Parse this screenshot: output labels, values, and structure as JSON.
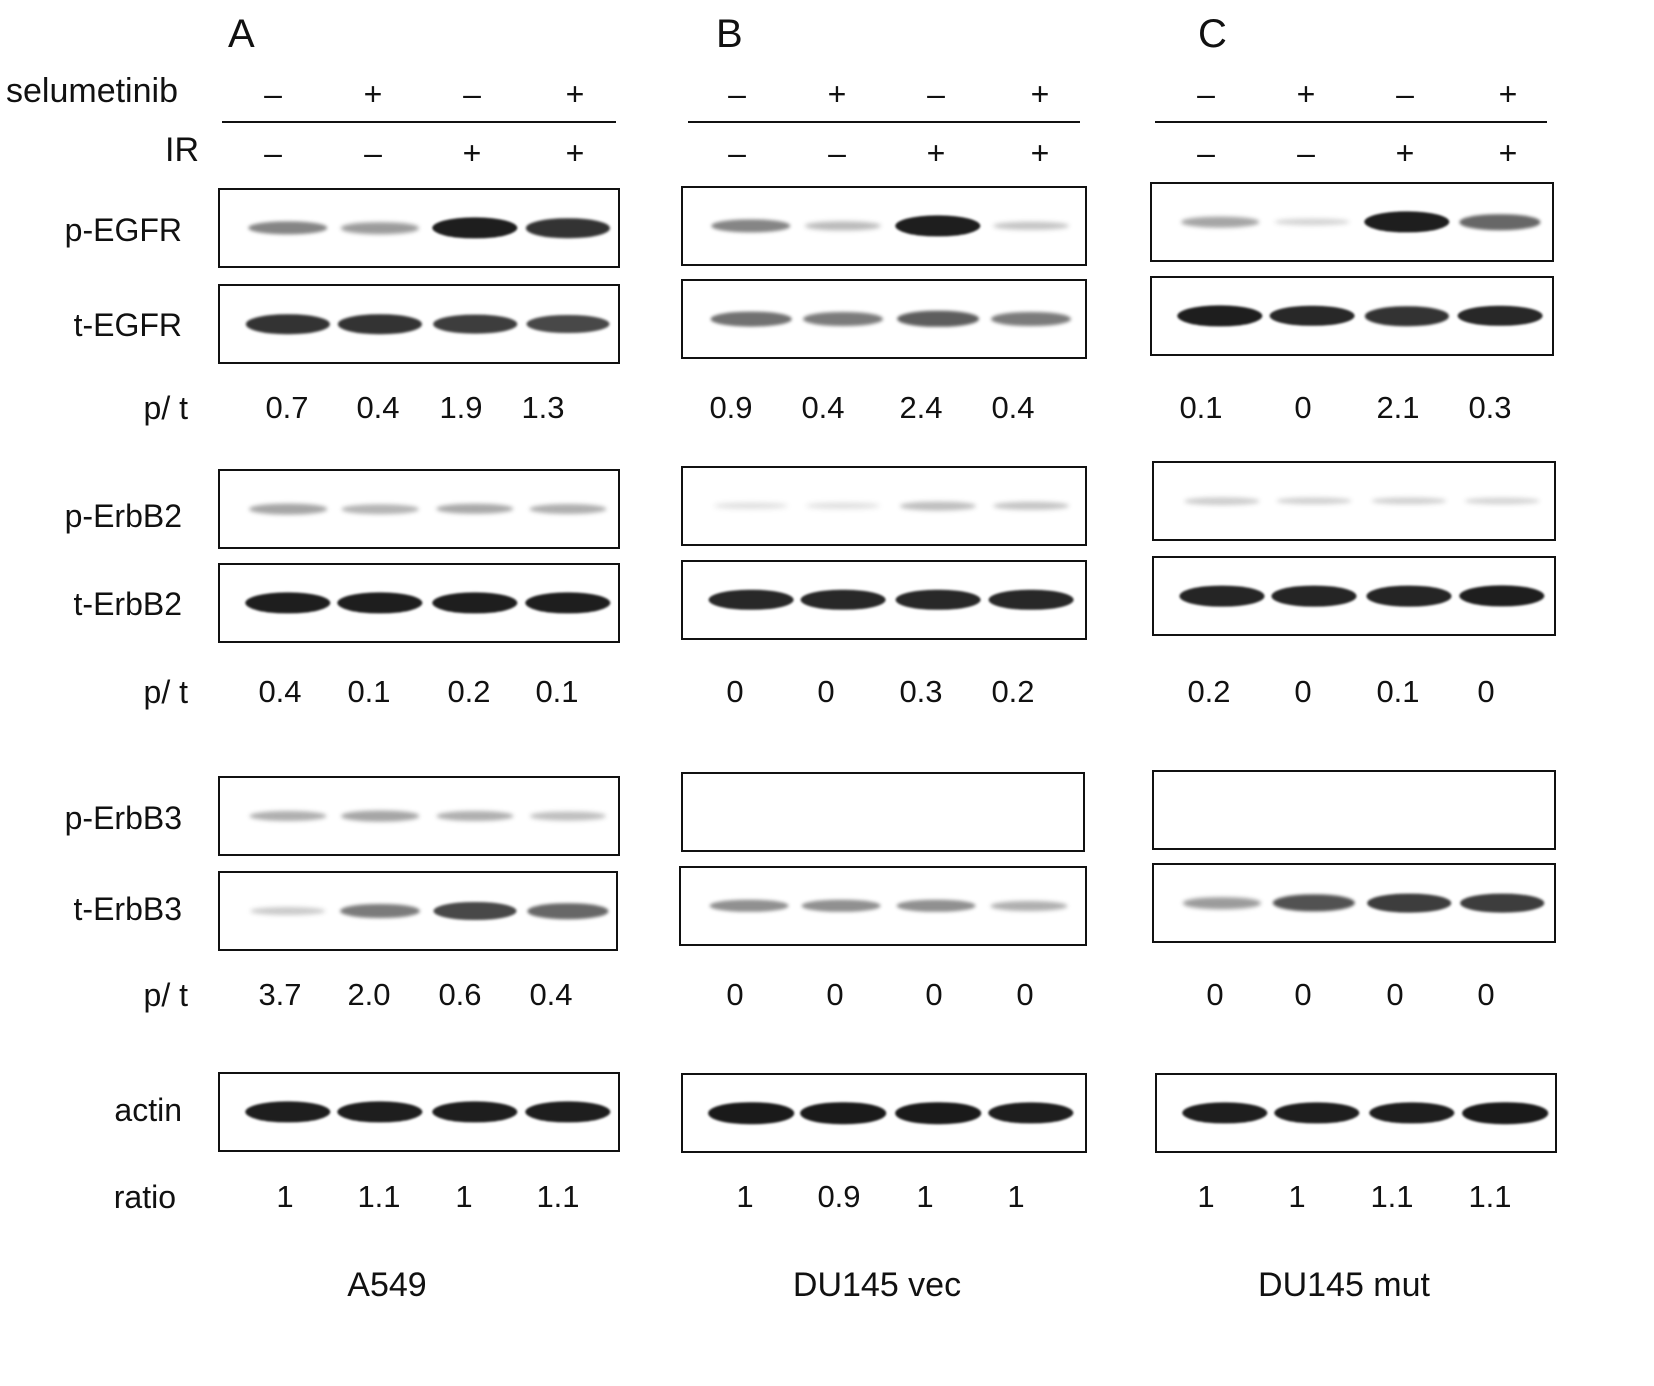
{
  "panels": [
    {
      "letter": "A",
      "cell_line": "A549",
      "blots": {
        "p_EGFR": {
          "bands": [
            0.45,
            0.35,
            0.95,
            0.85
          ]
        },
        "t_EGFR": {
          "bands": [
            0.85,
            0.85,
            0.8,
            0.75
          ]
        },
        "p_ErbB2": {
          "bands": [
            0.3,
            0.22,
            0.28,
            0.25
          ]
        },
        "t_ErbB2": {
          "bands": [
            0.95,
            0.95,
            0.95,
            0.95
          ]
        },
        "p_ErbB3": {
          "bands": [
            0.25,
            0.3,
            0.25,
            0.18
          ]
        },
        "t_ErbB3": {
          "bands": [
            0.12,
            0.5,
            0.75,
            0.6
          ]
        },
        "actin": {
          "bands": [
            0.95,
            0.95,
            0.95,
            0.95
          ]
        }
      },
      "ratios": {
        "egfr": [
          "0.7",
          "0.4",
          "1.9",
          "1.3"
        ],
        "erbb2": [
          "0.4",
          "0.1",
          "0.2",
          "0.1"
        ],
        "erbb3": [
          "3.7",
          "2.0",
          "0.6",
          "0.4"
        ],
        "actin": [
          "1",
          "1.1",
          "1",
          "1.1"
        ]
      }
    },
    {
      "letter": "B",
      "cell_line": "DU145 vec",
      "blots": {
        "p_EGFR": {
          "bands": [
            0.45,
            0.2,
            0.95,
            0.15
          ]
        },
        "t_EGFR": {
          "bands": [
            0.55,
            0.5,
            0.65,
            0.5
          ]
        },
        "p_ErbB2": {
          "bands": [
            0.03,
            0.03,
            0.18,
            0.15
          ]
        },
        "t_ErbB2": {
          "bands": [
            0.9,
            0.9,
            0.9,
            0.9
          ]
        },
        "p_ErbB3": {
          "bands": [
            0,
            0,
            0,
            0
          ]
        },
        "t_ErbB3": {
          "bands": [
            0.4,
            0.4,
            0.4,
            0.25
          ]
        },
        "actin": {
          "bands": [
            0.97,
            0.97,
            0.97,
            0.95
          ]
        }
      },
      "ratios": {
        "egfr": [
          "0.9",
          "0.4",
          "2.4",
          "0.4"
        ],
        "erbb2": [
          "0",
          "0",
          "0.3",
          "0.2"
        ],
        "erbb3": [
          "0",
          "0",
          "0",
          "0"
        ],
        "actin": [
          "1",
          "0.9",
          "1",
          "1"
        ]
      }
    },
    {
      "letter": "C",
      "cell_line": "DU145 mut",
      "blots": {
        "p_EGFR": {
          "bands": [
            0.3,
            0.07,
            0.95,
            0.6
          ]
        },
        "t_EGFR": {
          "bands": [
            0.95,
            0.9,
            0.85,
            0.9
          ]
        },
        "p_ErbB2": {
          "bands": [
            0.1,
            0.08,
            0.08,
            0.06
          ]
        },
        "t_ErbB2": {
          "bands": [
            0.92,
            0.92,
            0.92,
            0.95
          ]
        },
        "p_ErbB3": {
          "bands": [
            0,
            0,
            0,
            0
          ]
        },
        "t_ErbB3": {
          "bands": [
            0.35,
            0.7,
            0.8,
            0.8
          ]
        },
        "actin": {
          "bands": [
            0.95,
            0.95,
            0.95,
            0.97
          ]
        }
      },
      "ratios": {
        "egfr": [
          "0.1",
          "0",
          "2.1",
          "0.3"
        ],
        "erbb2": [
          "0.2",
          "0",
          "0.1",
          "0"
        ],
        "erbb3": [
          "0",
          "0",
          "0",
          "0"
        ],
        "actin": [
          "1",
          "1",
          "1.1",
          "1.1"
        ]
      }
    }
  ],
  "treatments": {
    "selumetinib": {
      "label": "selumetinib",
      "signs": [
        "–",
        "+",
        "–",
        "+"
      ]
    },
    "ir": {
      "label": "IR",
      "signs": [
        "–",
        "–",
        "+",
        "+"
      ]
    }
  },
  "row_labels": {
    "p_EGFR": "p-EGFR",
    "t_EGFR": "t-EGFR",
    "p_ErbB2": "p-ErbB2",
    "t_ErbB2": "t-ErbB2",
    "p_ErbB3": "p-ErbB3",
    "t_ErbB3": "t-ErbB3",
    "actin": "actin",
    "ratio_pt": "p/ t",
    "ratio_actin": "ratio"
  },
  "colors": {
    "band": "#141414",
    "frame": "#111111",
    "background": "#ffffff"
  }
}
